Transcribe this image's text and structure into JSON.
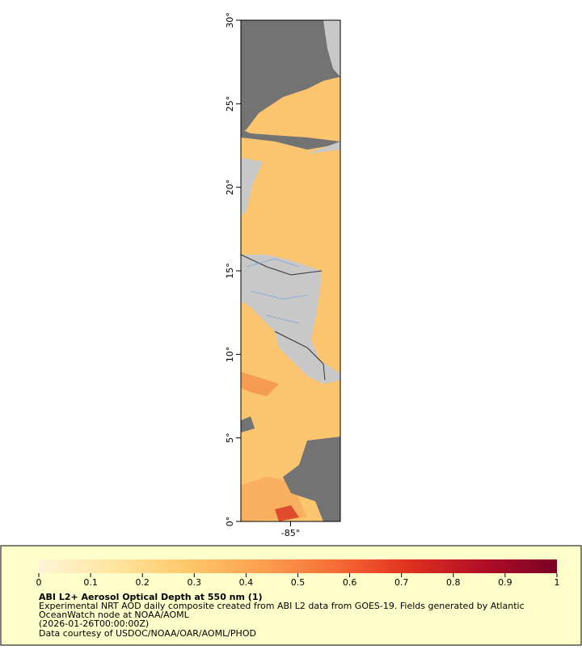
{
  "chart_data": {
    "type": "map",
    "xlim": [
      -88,
      -82
    ],
    "ylim": [
      0,
      30
    ],
    "xticks": [
      {
        "value": -85,
        "label": "-85°"
      }
    ],
    "yticks": [
      {
        "value": 0,
        "label": "0°"
      },
      {
        "value": 5,
        "label": "5°"
      },
      {
        "value": 10,
        "label": "10°"
      },
      {
        "value": 15,
        "label": "15°"
      },
      {
        "value": 20,
        "label": "20°"
      },
      {
        "value": 25,
        "label": "25°"
      },
      {
        "value": 30,
        "label": "30°"
      }
    ],
    "colorbar": {
      "lim": [
        0,
        1
      ],
      "ticks": [
        0,
        0.1,
        0.2,
        0.3,
        0.4,
        0.5,
        0.6,
        0.7,
        0.8,
        0.9,
        1
      ],
      "colors": [
        "#fff5d6",
        "#fee6a0",
        "#fdc86a",
        "#fca050",
        "#f76d36",
        "#e0301e",
        "#b00f26",
        "#7a0025"
      ]
    },
    "title": "ABI L2+ Aerosol Optical Depth at 550 nm (1)",
    "notes": [
      "Experimental NRT AOD daily composite created from ABI L2 data from GOES-19. Fields generated by Atlantic",
      "OceanWatch node at NOAA/AOML",
      "(2026-01-26T00:00:00Z)",
      "Data courtesy of USDOC/NOAA/OAR/AOML/PHOD"
    ]
  }
}
